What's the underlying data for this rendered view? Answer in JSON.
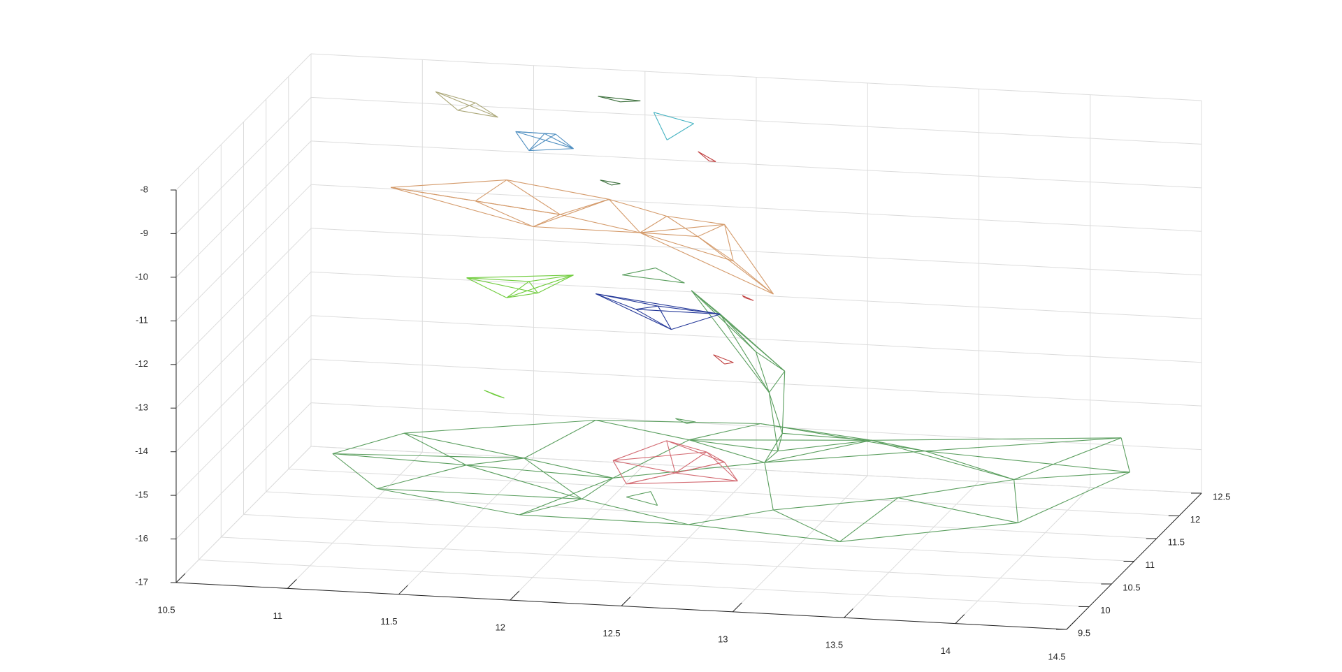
{
  "chart_data": {
    "type": "wireframe-mesh-3d",
    "title": "",
    "xlabel": "",
    "ylabel": "",
    "zlabel": "",
    "grid": true,
    "legend": false,
    "xlim": [
      10.5,
      14.5
    ],
    "ylim": [
      9.5,
      12.5
    ],
    "zlim": [
      -17,
      -8
    ],
    "x_ticks": [
      "10.5",
      "11",
      "11.5",
      "12",
      "12.5",
      "13",
      "13.5",
      "14",
      "14.5"
    ],
    "y_ticks": [
      "9.5",
      "10",
      "10.5",
      "11",
      "11.5",
      "12",
      "12.5"
    ],
    "z_ticks": [
      "-8",
      "-9",
      "-10",
      "-11",
      "-12",
      "-13",
      "-14",
      "-15",
      "-16",
      "-17"
    ],
    "view": {
      "azimuth": -25,
      "elevation": 20
    },
    "meshes": [
      {
        "color": "#5a9e5e",
        "points": [
          [
            11.1,
            11.6,
            -15.6
          ],
          [
            11.9,
            11.9,
            -15.4
          ],
          [
            12.6,
            12.1,
            -15.5
          ],
          [
            13.4,
            11.8,
            -15.6
          ],
          [
            14.2,
            12.2,
            -15.5
          ],
          [
            14.4,
            11.4,
            -15.4
          ],
          [
            14.1,
            10.4,
            -15.6
          ],
          [
            13.4,
            9.9,
            -15.7
          ],
          [
            12.7,
            10.0,
            -15.6
          ],
          [
            11.9,
            10.2,
            -15.8
          ],
          [
            11.2,
            10.5,
            -15.7
          ],
          [
            10.9,
            11.0,
            -15.5
          ],
          [
            11.5,
            11.0,
            -15.6
          ],
          [
            12.2,
            10.8,
            -15.5
          ],
          [
            12.8,
            11.2,
            -15.4
          ],
          [
            13.5,
            10.7,
            -15.5
          ],
          [
            13.9,
            11.3,
            -15.6
          ],
          [
            12.4,
            11.5,
            -15.3
          ],
          [
            11.7,
            11.3,
            -15.7
          ],
          [
            13.0,
            10.4,
            -15.6
          ],
          [
            12.1,
            10.6,
            -15.8
          ],
          [
            13.2,
            11.6,
            -15.2
          ],
          [
            12.9,
            11.1,
            -14.6
          ],
          [
            12.8,
            11.3,
            -13.9
          ],
          [
            12.7,
            11.5,
            -13.2
          ],
          [
            12.5,
            11.7,
            -12.6
          ],
          [
            12.35,
            11.8,
            -12.2
          ],
          [
            12.9,
            11.0,
            -14.9
          ],
          [
            12.85,
            11.4,
            -13.5
          ]
        ]
      },
      {
        "color": "#d49a6a",
        "points": [
          [
            11.0,
            11.8,
            -10.2
          ],
          [
            11.4,
            11.7,
            -10.3
          ],
          [
            11.8,
            11.6,
            -10.4
          ],
          [
            12.2,
            11.4,
            -10.5
          ],
          [
            12.5,
            11.2,
            -10.3
          ],
          [
            12.7,
            11.0,
            -10.6
          ],
          [
            12.9,
            10.9,
            -11.2
          ],
          [
            11.5,
            11.9,
            -10.0
          ],
          [
            12.0,
            11.7,
            -10.1
          ],
          [
            12.6,
            11.3,
            -10.1
          ],
          [
            11.7,
            11.5,
            -10.6
          ],
          [
            12.3,
            11.5,
            -10.2
          ]
        ]
      },
      {
        "color": "#d36a72",
        "points": [
          [
            12.2,
            10.8,
            -15.1
          ],
          [
            12.5,
            10.7,
            -15.2
          ],
          [
            12.8,
            10.6,
            -15.2
          ],
          [
            12.4,
            11.0,
            -14.8
          ],
          [
            12.6,
            10.9,
            -14.9
          ],
          [
            12.3,
            10.6,
            -15.4
          ],
          [
            12.7,
            10.8,
            -15.0
          ]
        ]
      },
      {
        "color": "#263a9a",
        "points": [
          [
            11.9,
            11.9,
            -12.5
          ],
          [
            12.2,
            11.8,
            -12.6
          ],
          [
            12.5,
            11.7,
            -12.6
          ],
          [
            12.3,
            11.6,
            -12.9
          ],
          [
            12.1,
            11.8,
            -12.7
          ]
        ]
      },
      {
        "color": "#6fcc3c",
        "points": [
          [
            11.3,
            12.0,
            -12.4
          ],
          [
            11.6,
            11.9,
            -12.3
          ],
          [
            11.8,
            11.9,
            -12.1
          ],
          [
            11.5,
            11.9,
            -12.7
          ],
          [
            11.65,
            11.85,
            -12.5
          ]
        ]
      },
      {
        "color": "#4e8ec0",
        "points": [
          [
            11.5,
            12.1,
            -9.1
          ],
          [
            11.7,
            12.0,
            -9.0
          ],
          [
            11.8,
            11.9,
            -9.2
          ],
          [
            11.6,
            11.9,
            -9.3
          ],
          [
            11.65,
            12.0,
            -9.0
          ]
        ]
      },
      {
        "color": "#aca87a",
        "points": [
          [
            11.1,
            12.3,
            -8.5
          ],
          [
            11.3,
            12.2,
            -8.6
          ],
          [
            11.4,
            12.2,
            -8.9
          ],
          [
            11.2,
            12.3,
            -8.9
          ]
        ]
      },
      {
        "color": "#46b3c2",
        "points": [
          [
            12.1,
            12.2,
            -8.6
          ],
          [
            12.3,
            12.1,
            -8.7
          ],
          [
            12.2,
            12.0,
            -9.0
          ]
        ]
      },
      {
        "color": "#3a6e3a",
        "points": [
          [
            11.85,
            12.2,
            -8.3
          ],
          [
            12.05,
            12.15,
            -8.3
          ],
          [
            11.95,
            12.2,
            -8.4
          ]
        ]
      },
      {
        "color": "#5a9e5e",
        "points": [
          [
            12.1,
            11.5,
            -11.6
          ],
          [
            12.4,
            11.4,
            -11.6
          ],
          [
            12.25,
            11.5,
            -11.4
          ]
        ]
      },
      {
        "color": "#c04040",
        "points": [
          [
            12.4,
            11.7,
            -8.9
          ],
          [
            12.5,
            11.6,
            -9.0
          ],
          [
            12.45,
            11.7,
            -9.1
          ]
        ]
      },
      {
        "color": "#c04040",
        "points": [
          [
            12.7,
            11.2,
            -11.6
          ],
          [
            12.75,
            11.2,
            -11.7
          ],
          [
            12.7,
            11.25,
            -11.7
          ]
        ]
      },
      {
        "color": "#c04040",
        "points": [
          [
            12.55,
            11.3,
            -13.1
          ],
          [
            12.65,
            11.25,
            -13.2
          ],
          [
            12.6,
            11.3,
            -13.3
          ]
        ]
      },
      {
        "color": "#3a6e3a",
        "points": [
          [
            11.9,
            12.0,
            -10.0
          ],
          [
            12.0,
            11.95,
            -10.0
          ],
          [
            11.95,
            12.0,
            -10.1
          ]
        ]
      },
      {
        "color": "#6fcc3c",
        "points": [
          [
            11.5,
            11.4,
            -14.3
          ],
          [
            11.55,
            11.4,
            -14.4
          ],
          [
            11.6,
            11.35,
            -14.4
          ]
        ]
      },
      {
        "color": "#5a9e5e",
        "points": [
          [
            12.4,
            11.2,
            -14.5
          ],
          [
            12.5,
            11.15,
            -14.5
          ],
          [
            12.45,
            11.2,
            -14.6
          ]
        ]
      },
      {
        "color": "#5a9e5e",
        "points": [
          [
            12.3,
            10.6,
            -15.7
          ],
          [
            12.45,
            10.55,
            -15.8
          ],
          [
            12.4,
            10.65,
            -15.6
          ]
        ]
      }
    ]
  }
}
